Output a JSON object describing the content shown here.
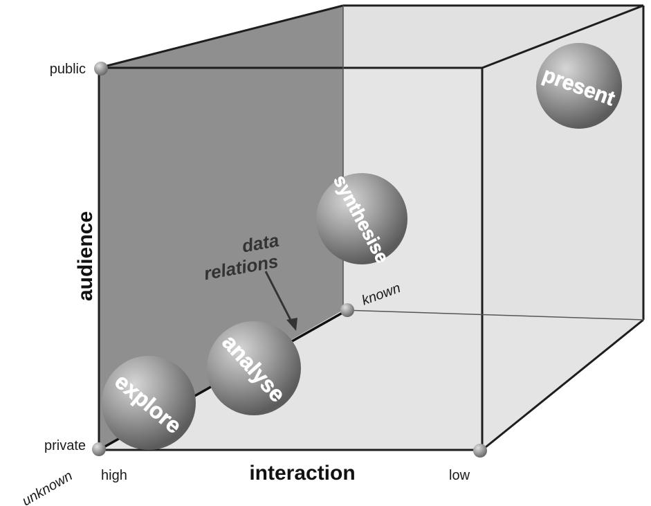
{
  "axes": {
    "audience": {
      "title": "audience",
      "low": "private",
      "high": "public"
    },
    "interaction": {
      "title": "interaction",
      "high": "high",
      "low": "low"
    },
    "data_relations": {
      "low": "unknown",
      "high": "known"
    }
  },
  "spheres": {
    "explore": "explore",
    "analyse": "analyse",
    "synthesise": "synthesise",
    "present": "present"
  },
  "annotation": {
    "line1": "data",
    "line2": "relations"
  },
  "colors": {
    "back_face": "#8d8d8d",
    "light_face": "#dcdcdc",
    "edge": "#1e1e1e",
    "sphere": "#8a8a8a"
  }
}
